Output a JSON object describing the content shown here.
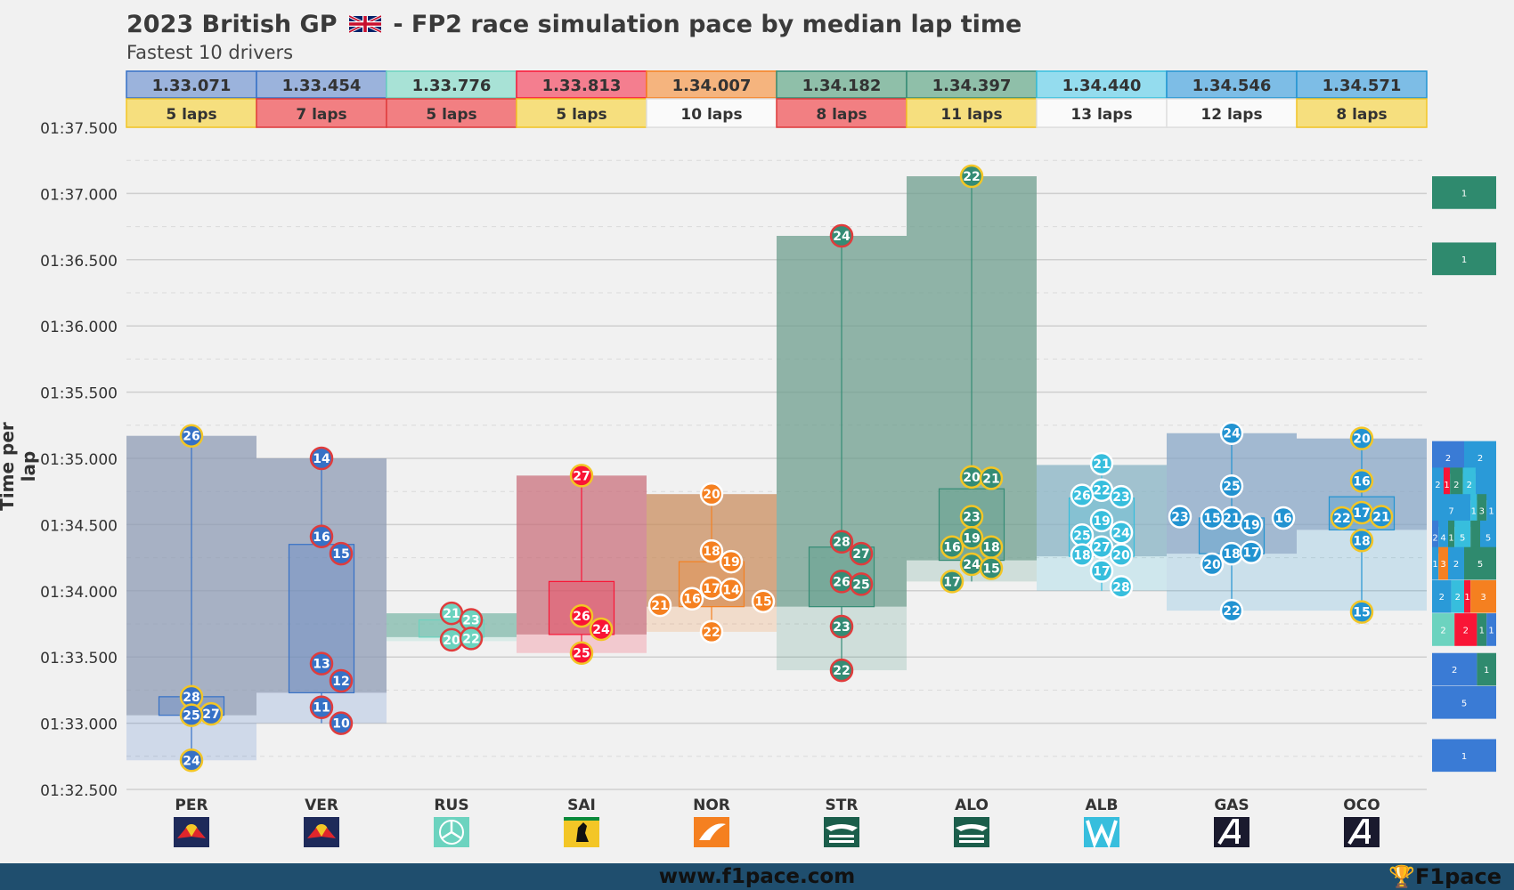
{
  "title": "2023 British GP",
  "title_suffix": "- FP2 race simulation pace by median lap time",
  "subtitle": "Fastest 10 drivers",
  "footer_url": "www.f1pace.com",
  "footer_brand": "F1pace",
  "chart_data": {
    "type": "box",
    "ylabel": "Time per lap",
    "ylim": [
      "01:32.500",
      "01:37.500"
    ],
    "y_ticks": [
      "01:37.500",
      "01:37.000",
      "01:36.500",
      "01:36.000",
      "01:35.500",
      "01:35.000",
      "01:34.500",
      "01:34.000",
      "01:33.500",
      "01:33.000",
      "01:32.500"
    ],
    "grid": true,
    "drivers": [
      {
        "code": "PER",
        "median": "1.33.071",
        "laps": "5 laps",
        "team_color": "#3671c6",
        "team": "redbull",
        "min": 92.72,
        "max": 95.17,
        "q1": 93.06,
        "q3": 93.2,
        "points": [
          {
            "lap": "26",
            "t": 95.17
          },
          {
            "lap": "28",
            "t": 93.2
          },
          {
            "lap": "27",
            "t": 93.07
          },
          {
            "lap": "25",
            "t": 93.06
          },
          {
            "lap": "24",
            "t": 92.72
          }
        ],
        "ring": "#f3c626"
      },
      {
        "code": "VER",
        "median": "1.33.454",
        "laps": "7 laps",
        "team_color": "#3671c6",
        "team": "redbull",
        "min": 93.0,
        "max": 95.0,
        "q1": 93.23,
        "q3": 94.35,
        "points": [
          {
            "lap": "14",
            "t": 95.0
          },
          {
            "lap": "16",
            "t": 94.41
          },
          {
            "lap": "15",
            "t": 94.28
          },
          {
            "lap": "13",
            "t": 93.45
          },
          {
            "lap": "12",
            "t": 93.32
          },
          {
            "lap": "11",
            "t": 93.12
          },
          {
            "lap": "10",
            "t": 93.0
          }
        ],
        "ring": "#e03c3c"
      },
      {
        "code": "RUS",
        "median": "1.33.776",
        "laps": "5 laps",
        "team_color": "#6cd3bf",
        "team": "mercedes",
        "min": 93.62,
        "max": 93.83,
        "q1": 93.65,
        "q3": 93.78,
        "points": [
          {
            "lap": "21",
            "t": 93.83
          },
          {
            "lap": "23",
            "t": 93.78
          },
          {
            "lap": "20",
            "t": 93.63
          },
          {
            "lap": "22",
            "t": 93.64
          }
        ],
        "ring": "#e03c3c"
      },
      {
        "code": "SAI",
        "median": "1.33.813",
        "laps": "5 laps",
        "team_color": "#f91536",
        "team": "ferrari",
        "min": 93.53,
        "max": 94.87,
        "q1": 93.67,
        "q3": 94.07,
        "points": [
          {
            "lap": "27",
            "t": 94.87
          },
          {
            "lap": "26",
            "t": 93.81
          },
          {
            "lap": "24",
            "t": 93.71
          },
          {
            "lap": "25",
            "t": 93.53
          }
        ],
        "ring": "#f3c626"
      },
      {
        "code": "NOR",
        "median": "1.34.007",
        "laps": "10 laps",
        "team_color": "#f58020",
        "team": "mclaren",
        "min": 93.69,
        "max": 94.73,
        "q1": 93.88,
        "q3": 94.22,
        "points": [
          {
            "lap": "20",
            "t": 94.73
          },
          {
            "lap": "18",
            "t": 94.3
          },
          {
            "lap": "19",
            "t": 94.22
          },
          {
            "lap": "17",
            "t": 94.02
          },
          {
            "lap": "14",
            "t": 94.01
          },
          {
            "lap": "16",
            "t": 93.94
          },
          {
            "lap": "15",
            "t": 93.92
          },
          {
            "lap": "21",
            "t": 93.89
          },
          {
            "lap": "22",
            "t": 93.69
          }
        ],
        "ring": "#ffffff"
      },
      {
        "code": "STR",
        "median": "1.34.182",
        "laps": "8 laps",
        "team_color": "#358c75",
        "team": "astonmartin",
        "min": 93.4,
        "max": 96.68,
        "q1": 93.88,
        "q3": 94.33,
        "points": [
          {
            "lap": "24",
            "t": 96.68
          },
          {
            "lap": "28",
            "t": 94.37
          },
          {
            "lap": "27",
            "t": 94.28
          },
          {
            "lap": "26",
            "t": 94.07
          },
          {
            "lap": "25",
            "t": 94.05
          },
          {
            "lap": "23",
            "t": 93.73
          },
          {
            "lap": "22",
            "t": 93.4
          }
        ],
        "ring": "#e03c3c"
      },
      {
        "code": "ALO",
        "median": "1.34.397",
        "laps": "11 laps",
        "team_color": "#358c75",
        "team": "astonmartin",
        "min": 94.07,
        "max": 97.13,
        "q1": 94.23,
        "q3": 94.77,
        "points": [
          {
            "lap": "22",
            "t": 97.13
          },
          {
            "lap": "20",
            "t": 94.86
          },
          {
            "lap": "21",
            "t": 94.85
          },
          {
            "lap": "23",
            "t": 94.56
          },
          {
            "lap": "19",
            "t": 94.4
          },
          {
            "lap": "18",
            "t": 94.33
          },
          {
            "lap": "16",
            "t": 94.33
          },
          {
            "lap": "24",
            "t": 94.2
          },
          {
            "lap": "15",
            "t": 94.17
          },
          {
            "lap": "17",
            "t": 94.07
          }
        ],
        "ring": "#f3c626"
      },
      {
        "code": "ALB",
        "median": "1.34.440",
        "laps": "13 laps",
        "team_color": "#37bedd",
        "team": "williams",
        "min": 94.0,
        "max": 94.95,
        "q1": 94.26,
        "q3": 94.7,
        "points": [
          {
            "lap": "21",
            "t": 94.96
          },
          {
            "lap": "22",
            "t": 94.76
          },
          {
            "lap": "23",
            "t": 94.71
          },
          {
            "lap": "26",
            "t": 94.72
          },
          {
            "lap": "19",
            "t": 94.53
          },
          {
            "lap": "24",
            "t": 94.44
          },
          {
            "lap": "25",
            "t": 94.42
          },
          {
            "lap": "27",
            "t": 94.33
          },
          {
            "lap": "20",
            "t": 94.27
          },
          {
            "lap": "18",
            "t": 94.27
          },
          {
            "lap": "17",
            "t": 94.15
          },
          {
            "lap": "28",
            "t": 94.03
          }
        ],
        "ring": "#ffffff"
      },
      {
        "code": "GAS",
        "median": "1.34.546",
        "laps": "12 laps",
        "team_color": "#2293d1",
        "team": "alpine",
        "min": 93.85,
        "max": 95.19,
        "q1": 94.28,
        "q3": 94.55,
        "points": [
          {
            "lap": "24",
            "t": 95.19
          },
          {
            "lap": "25",
            "t": 94.79
          },
          {
            "lap": "21",
            "t": 94.55
          },
          {
            "lap": "19",
            "t": 94.5
          },
          {
            "lap": "15",
            "t": 94.55
          },
          {
            "lap": "16",
            "t": 94.55
          },
          {
            "lap": "23",
            "t": 94.56
          },
          {
            "lap": "18",
            "t": 94.28
          },
          {
            "lap": "17",
            "t": 94.29
          },
          {
            "lap": "20",
            "t": 94.2
          },
          {
            "lap": "22",
            "t": 93.85
          }
        ],
        "ring": "#ffffff"
      },
      {
        "code": "OCO",
        "median": "1.34.571",
        "laps": "8 laps",
        "team_color": "#2293d1",
        "team": "alpine",
        "min": 93.85,
        "max": 95.15,
        "q1": 94.46,
        "q3": 94.71,
        "points": [
          {
            "lap": "20",
            "t": 95.15
          },
          {
            "lap": "16",
            "t": 94.83
          },
          {
            "lap": "17",
            "t": 94.59
          },
          {
            "lap": "21",
            "t": 94.56
          },
          {
            "lap": "22",
            "t": 94.55
          },
          {
            "lap": "18",
            "t": 94.38
          },
          {
            "lap": "15",
            "t": 93.84
          }
        ],
        "ring": "#f3c626"
      }
    ],
    "median_box_colors": [
      "#9bb3dc",
      "#9bb3dc",
      "#a8e2d6",
      "#f47e8f",
      "#f5b47e",
      "#8fbfa9",
      "#8fbfa9",
      "#94dcee",
      "#7dbde6",
      "#7dbde6"
    ],
    "laps_box_colors": [
      "#f6df7e",
      "#f27f82",
      "#f27f82",
      "#f6df7e",
      "#fafafa",
      "#f27f82",
      "#f6df7e",
      "#fafafa",
      "#fafafa",
      "#f6df7e"
    ],
    "histogram": [
      {
        "t": 97.0,
        "h": 0.26,
        "label": "1",
        "segments": [
          {
            "c": "#2f8a6e",
            "w": 1
          }
        ]
      },
      {
        "t": 96.5,
        "h": 0.26,
        "label": "1",
        "segments": [
          {
            "c": "#2f8a6e",
            "w": 1
          }
        ]
      },
      {
        "t": 95.0,
        "h": 0.26,
        "segments": [
          {
            "c": "#3a7bd5",
            "w": 0.5,
            "l": "2"
          },
          {
            "c": "#2a9ad8",
            "w": 0.5,
            "l": "2"
          }
        ]
      },
      {
        "t": 94.8,
        "h": 0.26,
        "segments": [
          {
            "c": "#2a9ad8",
            "w": 0.18,
            "l": "2"
          },
          {
            "c": "#f91536",
            "w": 0.1,
            "l": "1"
          },
          {
            "c": "#2f8a6e",
            "w": 0.2,
            "l": "2"
          },
          {
            "c": "#37bedd",
            "w": 0.2,
            "l": "2"
          },
          {
            "c": "#2a9ad8",
            "w": 0.32,
            "l": ""
          }
        ]
      },
      {
        "t": 94.6,
        "h": 0.26,
        "segments": [
          {
            "c": "#2a9ad8",
            "w": 0.6,
            "l": "7"
          },
          {
            "c": "#37bedd",
            "w": 0.1,
            "l": "1"
          },
          {
            "c": "#2f8a6e",
            "w": 0.15,
            "l": "3"
          },
          {
            "c": "#2a9ad8",
            "w": 0.15,
            "l": "1"
          }
        ]
      },
      {
        "t": 94.4,
        "h": 0.26,
        "segments": [
          {
            "c": "#3a7bd5",
            "w": 0.1,
            "l": "2"
          },
          {
            "c": "#2a9ad8",
            "w": 0.15,
            "l": "4"
          },
          {
            "c": "#2f8a6e",
            "w": 0.1,
            "l": "1"
          },
          {
            "c": "#37bedd",
            "w": 0.25,
            "l": "5"
          },
          {
            "c": "#2f8a6e",
            "w": 0.15,
            "l": ""
          },
          {
            "c": "#2a9ad8",
            "w": 0.25,
            "l": "5"
          }
        ]
      },
      {
        "t": 94.2,
        "h": 0.26,
        "segments": [
          {
            "c": "#2a9ad8",
            "w": 0.1,
            "l": "1"
          },
          {
            "c": "#f58020",
            "w": 0.15,
            "l": "3"
          },
          {
            "c": "#2a9ad8",
            "w": 0.25,
            "l": "2"
          },
          {
            "c": "#2f8a6e",
            "w": 0.5,
            "l": "5"
          }
        ]
      },
      {
        "t": 93.95,
        "h": 0.26,
        "segments": [
          {
            "c": "#2a9ad8",
            "w": 0.3,
            "l": "2"
          },
          {
            "c": "#37bedd",
            "w": 0.2,
            "l": "2"
          },
          {
            "c": "#f91536",
            "w": 0.1,
            "l": "1"
          },
          {
            "c": "#f58020",
            "w": 0.4,
            "l": "3"
          }
        ]
      },
      {
        "t": 93.7,
        "h": 0.26,
        "segments": [
          {
            "c": "#6cd3bf",
            "w": 0.35,
            "l": "2"
          },
          {
            "c": "#f91536",
            "w": 0.35,
            "l": "2"
          },
          {
            "c": "#2f8a6e",
            "w": 0.15,
            "l": "1"
          },
          {
            "c": "#3a7bd5",
            "w": 0.15,
            "l": "1"
          }
        ]
      },
      {
        "t": 93.4,
        "h": 0.26,
        "segments": [
          {
            "c": "#3a7bd5",
            "w": 0.7,
            "l": "2"
          },
          {
            "c": "#2f8a6e",
            "w": 0.3,
            "l": "1"
          }
        ]
      },
      {
        "t": 93.15,
        "h": 0.26,
        "label": "5",
        "segments": [
          {
            "c": "#3a7bd5",
            "w": 1
          }
        ]
      },
      {
        "t": 92.75,
        "h": 0.26,
        "label": "1",
        "segments": [
          {
            "c": "#3a7bd5",
            "w": 1
          }
        ]
      }
    ]
  }
}
